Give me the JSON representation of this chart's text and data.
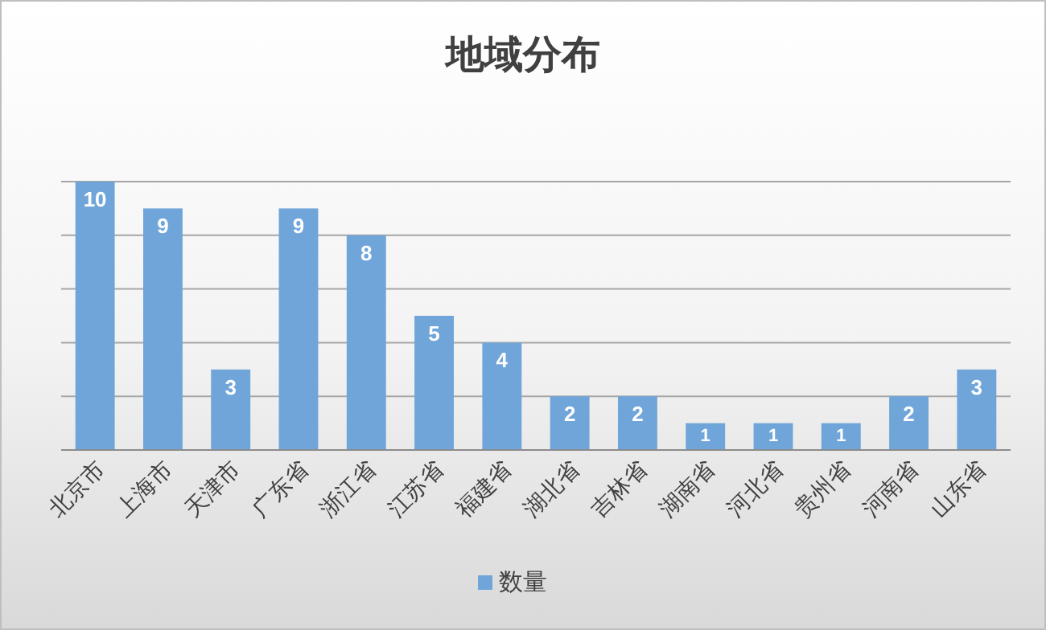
{
  "chart_data": {
    "type": "bar",
    "title": "地域分布",
    "categories": [
      "北京市",
      "上海市",
      "天津市",
      "广东省",
      "浙江省",
      "江苏省",
      "福建省",
      "湖北省",
      "吉林省",
      "湖南省",
      "河北省",
      "贵州省",
      "河南省",
      "山东省"
    ],
    "series": [
      {
        "name": "数量",
        "color": "#6fa5d9",
        "values": [
          10,
          9,
          3,
          9,
          8,
          5,
          4,
          2,
          2,
          1,
          1,
          1,
          2,
          3
        ]
      }
    ],
    "ylim": [
      0,
      10
    ],
    "yticks": [
      {
        "value": 0,
        "label": null
      },
      {
        "value": 2,
        "label": null
      },
      {
        "value": 4,
        "label": null
      },
      {
        "value": 6,
        "label": null
      },
      {
        "value": 8,
        "label": null
      },
      {
        "value": 10,
        "label": null
      }
    ],
    "grid": "y",
    "tick_labels": "x",
    "data_labels": true,
    "legend": "bottom"
  }
}
